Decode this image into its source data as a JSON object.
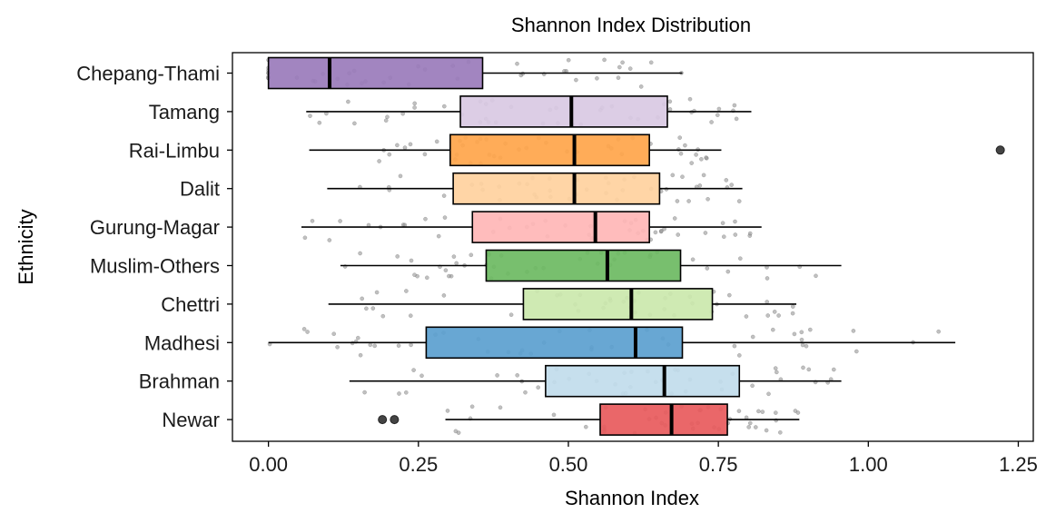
{
  "chart_data": {
    "type": "boxplot",
    "title": "Shannon Index Distribution",
    "xlabel": "Shannon Index",
    "ylabel": "Ethnicity",
    "xlim": [
      -0.06,
      1.275
    ],
    "xticks": [
      0.0,
      0.25,
      0.5,
      0.75,
      1.0,
      1.25
    ],
    "xtick_labels": [
      "0.00",
      "0.25",
      "0.50",
      "0.75",
      "1.00",
      "1.25"
    ],
    "grid": false,
    "legend": "none",
    "categories": [
      "Chepang-Thami",
      "Tamang",
      "Rai-Limbu",
      "Dalit",
      "Gurung-Magar",
      "Muslim-Others",
      "Chettri",
      "Madhesi",
      "Brahman",
      "Newar"
    ],
    "series": [
      {
        "category": "Chepang-Thami",
        "whisker_low": 0.0,
        "q1": 0.0,
        "median": 0.102,
        "q3": 0.357,
        "whisker_high": 0.69,
        "outliers": [],
        "color": "#9a7bbb"
      },
      {
        "category": "Tamang",
        "whisker_low": 0.063,
        "q1": 0.32,
        "median": 0.505,
        "q3": 0.665,
        "whisker_high": 0.805,
        "outliers": [],
        "color": "#d9c9e3"
      },
      {
        "category": "Rai-Limbu",
        "whisker_low": 0.068,
        "q1": 0.303,
        "median": 0.51,
        "q3": 0.635,
        "whisker_high": 0.755,
        "outliers": [
          1.22
        ],
        "color": "#ffa54a"
      },
      {
        "category": "Dalit",
        "whisker_low": 0.098,
        "q1": 0.308,
        "median": 0.51,
        "q3": 0.652,
        "whisker_high": 0.79,
        "outliers": [],
        "color": "#ffd19e"
      },
      {
        "category": "Gurung-Magar",
        "whisker_low": 0.055,
        "q1": 0.34,
        "median": 0.545,
        "q3": 0.635,
        "whisker_high": 0.822,
        "outliers": [],
        "color": "#ffb6b6"
      },
      {
        "category": "Muslim-Others",
        "whisker_low": 0.12,
        "q1": 0.363,
        "median": 0.565,
        "q3": 0.687,
        "whisker_high": 0.955,
        "outliers": [],
        "color": "#6cba62"
      },
      {
        "category": "Chettri",
        "whisker_low": 0.1,
        "q1": 0.425,
        "median": 0.605,
        "q3": 0.74,
        "whisker_high": 0.88,
        "outliers": [],
        "color": "#cbe8ac"
      },
      {
        "category": "Madhesi",
        "whisker_low": 0.0,
        "q1": 0.263,
        "median": 0.612,
        "q3": 0.69,
        "whisker_high": 1.145,
        "outliers": [],
        "color": "#5b9fcf"
      },
      {
        "category": "Brahman",
        "whisker_low": 0.135,
        "q1": 0.462,
        "median": 0.66,
        "q3": 0.785,
        "whisker_high": 0.955,
        "outliers": [],
        "color": "#c1dcec"
      },
      {
        "category": "Newar",
        "whisker_low": 0.295,
        "q1": 0.553,
        "median": 0.672,
        "q3": 0.765,
        "whisker_high": 0.885,
        "outliers": [
          0.19,
          0.21
        ],
        "color": "#e85a5c"
      }
    ]
  }
}
